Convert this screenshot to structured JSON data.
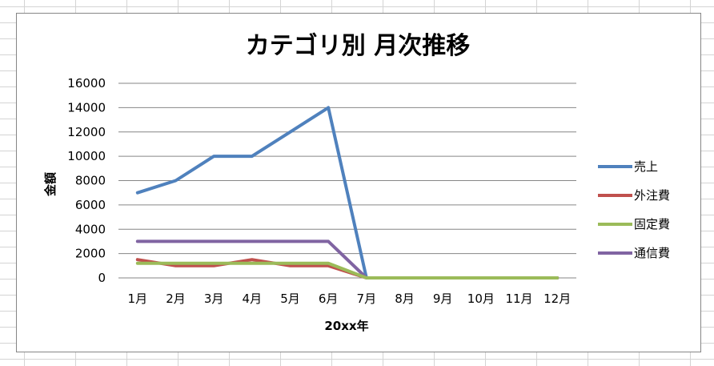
{
  "chart_data": {
    "type": "line",
    "title": "カテゴリ別 月次推移",
    "xlabel": "20xx年",
    "ylabel": "金額",
    "categories": [
      "1月",
      "2月",
      "3月",
      "4月",
      "5月",
      "6月",
      "7月",
      "8月",
      "9月",
      "10月",
      "11月",
      "12月"
    ],
    "ylim": [
      0,
      16000
    ],
    "yticks": [
      0,
      2000,
      4000,
      6000,
      8000,
      10000,
      12000,
      14000,
      16000
    ],
    "grid": true,
    "legend_position": "right",
    "series": [
      {
        "name": "売上",
        "color": "#4f81bd",
        "values": [
          7000,
          8000,
          10000,
          10000,
          12000,
          14000,
          0,
          0,
          0,
          0,
          0,
          0
        ]
      },
      {
        "name": "外注費",
        "color": "#c0504d",
        "values": [
          1500,
          1000,
          1000,
          1500,
          1000,
          1000,
          0,
          0,
          0,
          0,
          0,
          0
        ]
      },
      {
        "name": "固定費",
        "color": "#9bbb59",
        "values": [
          1200,
          1200,
          1200,
          1200,
          1200,
          1200,
          0,
          0,
          0,
          0,
          0,
          0
        ]
      },
      {
        "name": "通信費",
        "color": "#8064a2",
        "values": [
          3000,
          3000,
          3000,
          3000,
          3000,
          3000,
          0,
          0,
          0,
          0,
          0,
          0
        ]
      }
    ]
  }
}
